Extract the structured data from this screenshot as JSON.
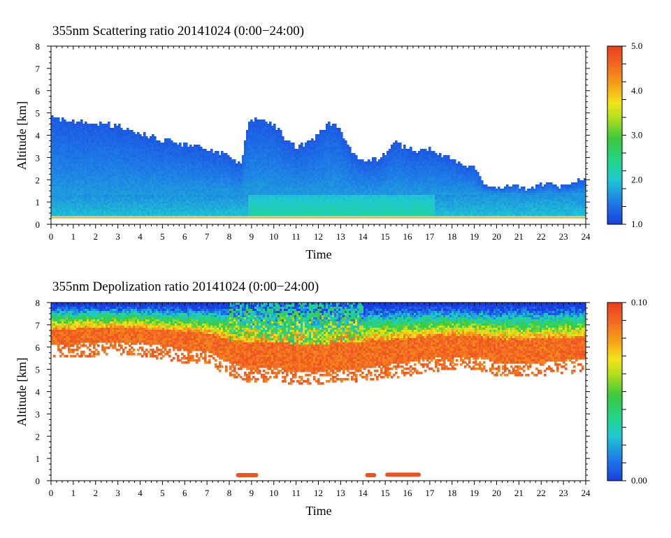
{
  "chart_data": [
    {
      "type": "heatmap",
      "title": "355nm Scattering ratio  20141024 (0:00−24:00)",
      "xlabel": "Time",
      "ylabel": "Altitude [km]",
      "xlim": [
        0,
        24
      ],
      "ylim": [
        0,
        8
      ],
      "x_ticks": [
        "0",
        "1",
        "2",
        "3",
        "4",
        "5",
        "6",
        "7",
        "8",
        "9",
        "10",
        "11",
        "12",
        "13",
        "14",
        "15",
        "16",
        "17",
        "18",
        "19",
        "20",
        "21",
        "22",
        "23",
        "24"
      ],
      "y_ticks": [
        "0",
        "1",
        "2",
        "3",
        "4",
        "5",
        "6",
        "7",
        "8"
      ],
      "colorbar": {
        "min": 1.0,
        "max": 5.0,
        "labels": [
          "1.0",
          "2.0",
          "3.0",
          "4.0",
          "5.0"
        ],
        "values": [
          1.0,
          2.0,
          3.0,
          4.0,
          5.0
        ]
      },
      "cloud_top_km": {
        "time": [
          0,
          1,
          2,
          3,
          4,
          5,
          6,
          7,
          8,
          8.3,
          8.5,
          8.8,
          9,
          9.5,
          10,
          10.5,
          11,
          11.5,
          12,
          12.5,
          13,
          13.5,
          14,
          14.5,
          15,
          15.5,
          16,
          16.5,
          17,
          17.5,
          18,
          18.5,
          19,
          19.5,
          20,
          20.5,
          21,
          21.5,
          22,
          22.5,
          23,
          23.5,
          24
        ],
        "top": [
          4.9,
          4.6,
          4.6,
          4.4,
          4.1,
          3.8,
          3.6,
          3.4,
          3.1,
          2.8,
          2.6,
          4.3,
          4.8,
          4.6,
          4.5,
          3.9,
          3.5,
          3.6,
          4.1,
          4.5,
          4.3,
          3.2,
          2.8,
          2.9,
          3.2,
          3.7,
          3.4,
          3.3,
          3.4,
          3.1,
          2.9,
          2.7,
          2.5,
          1.7,
          1.6,
          1.7,
          1.7,
          1.6,
          1.8,
          1.8,
          1.7,
          1.9,
          2.2
        ]
      },
      "boundary_layer": {
        "time": [
          0,
          24
        ],
        "altitude_km": [
          0.3,
          1.2
        ],
        "max_value": 2.5
      }
    },
    {
      "type": "heatmap",
      "title": "355nm Depolization ratio  20141024 (0:00−24:00)",
      "xlabel": "Time",
      "ylabel": "Altitude [km]",
      "xlim": [
        0,
        24
      ],
      "ylim": [
        0,
        8
      ],
      "x_ticks": [
        "0",
        "1",
        "2",
        "3",
        "4",
        "5",
        "6",
        "7",
        "8",
        "9",
        "10",
        "11",
        "12",
        "13",
        "14",
        "15",
        "16",
        "17",
        "18",
        "19",
        "20",
        "21",
        "22",
        "23",
        "24"
      ],
      "y_ticks": [
        "0",
        "1",
        "2",
        "3",
        "4",
        "5",
        "6",
        "7",
        "8"
      ],
      "colorbar": {
        "min": 0.0,
        "max": 0.1,
        "labels": [
          "0.00",
          "0.10"
        ],
        "values": [
          0.0,
          0.1
        ]
      },
      "cloud_base_km": {
        "time": [
          0,
          2,
          4,
          6,
          7,
          8,
          9,
          10,
          11,
          12,
          13,
          14,
          15,
          16,
          17,
          18,
          19,
          20,
          21,
          22,
          23,
          24
        ],
        "base": [
          5.8,
          5.9,
          5.9,
          5.6,
          5.5,
          5.0,
          4.7,
          4.8,
          4.6,
          4.6,
          4.7,
          4.8,
          4.9,
          5.0,
          5.2,
          5.3,
          5.3,
          5.0,
          5.0,
          5.0,
          5.1,
          5.2
        ]
      },
      "low_features": [
        {
          "t0": 8.3,
          "t1": 9.3,
          "altitude_km": 0.25,
          "value": 0.1
        },
        {
          "t0": 14.1,
          "t1": 14.6,
          "altitude_km": 0.25,
          "value": 0.1
        },
        {
          "t0": 15.0,
          "t1": 16.6,
          "altitude_km": 0.27,
          "value": 0.1
        }
      ]
    }
  ]
}
